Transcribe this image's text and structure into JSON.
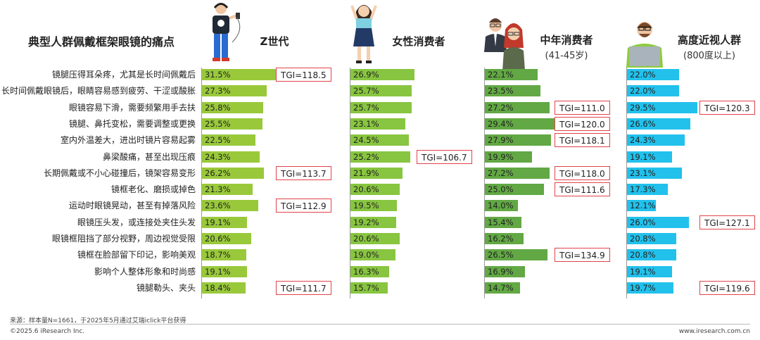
{
  "title": "典型人群佩戴框架眼镜的痛点",
  "colors": {
    "z": "#99c93b",
    "female": "#88c540",
    "middle": "#62a844",
    "myopia": "#22c1ec",
    "tgi_border": "#e0434a"
  },
  "chart_data": {
    "type": "bar",
    "orientation": "horizontal",
    "categories": [
      "镜腿压得耳朵疼，尤其是长时间佩戴后",
      "长时间佩戴眼镜后，眼睛容易感到疲劳、干涩或酸胀",
      "眼镜容易下滑，需要频繁用手去扶",
      "镜腿、鼻托变松，需要调整或更换",
      "室内外温差大，进出时镜片容易起雾",
      "鼻梁酸痛，甚至出现压痕",
      "长期佩戴或不小心碰撞后，镜架容易变形",
      "镜框老化、磨损或掉色",
      "运动时眼镜晃动，甚至有掉落风险",
      "眼镜压头发，或连接处夹住头发",
      "眼镜框阻挡了部分视野，周边视觉受限",
      "镜框在脸部留下印记，影响美观",
      "影响个人整体形象和时尚感",
      "镜腿勒头、夹头"
    ],
    "series": [
      {
        "name": "Z世代",
        "subtitle": "",
        "color_key": "z",
        "values": [
          31.5,
          27.3,
          25.8,
          25.5,
          22.5,
          24.3,
          26.2,
          21.3,
          23.6,
          19.1,
          20.6,
          18.7,
          19.1,
          18.4
        ],
        "labels": [
          "31.5%",
          "27.3%",
          "25.8%",
          "25.5%",
          "22.5%",
          "24.3%",
          "26.2%",
          "21.3%",
          "23.6%",
          "19.1%",
          "20.6%",
          "18.7%",
          "19.1%",
          "18.4%"
        ],
        "tgi": [
          {
            "row": 0,
            "text": "TGI=118.5"
          },
          {
            "row": 6,
            "text": "TGI=113.7"
          },
          {
            "row": 8,
            "text": "TGI=112.9"
          },
          {
            "row": 13,
            "text": "TGI=111.7"
          }
        ]
      },
      {
        "name": "女性消费者",
        "subtitle": "",
        "color_key": "female",
        "values": [
          26.9,
          25.7,
          25.7,
          23.1,
          24.5,
          25.2,
          21.9,
          20.6,
          19.5,
          19.2,
          20.6,
          19.0,
          16.3,
          15.7
        ],
        "labels": [
          "26.9%",
          "25.7%",
          "25.7%",
          "23.1%",
          "24.5%",
          "25.2%",
          "21.9%",
          "20.6%",
          "19.5%",
          "19.2%",
          "20.6%",
          "19.0%",
          "16.3%",
          "15.7%"
        ],
        "tgi": [
          {
            "row": 5,
            "text": "TGI=106.7"
          }
        ]
      },
      {
        "name": "中年消费者",
        "subtitle": "(41-45岁)",
        "color_key": "middle",
        "values": [
          22.1,
          23.5,
          27.2,
          29.4,
          27.9,
          19.9,
          27.2,
          25.0,
          14.0,
          15.4,
          16.2,
          26.5,
          16.9,
          14.7
        ],
        "labels": [
          "22.1%",
          "23.5%",
          "27.2%",
          "29.4%",
          "27.9%",
          "19.9%",
          "27.2%",
          "25.0%",
          "14.0%",
          "15.4%",
          "16.2%",
          "26.5%",
          "16.9%",
          "14.7%"
        ],
        "tgi": [
          {
            "row": 2,
            "text": "TGI=111.0"
          },
          {
            "row": 3,
            "text": "TGI=120.0"
          },
          {
            "row": 4,
            "text": "TGI=118.1"
          },
          {
            "row": 6,
            "text": "TGI=118.0"
          },
          {
            "row": 7,
            "text": "TGI=111.6"
          },
          {
            "row": 11,
            "text": "TGI=134.9"
          }
        ]
      },
      {
        "name": "高度近视人群",
        "subtitle": "(800度以上)",
        "color_key": "myopia",
        "values": [
          22.0,
          22.0,
          29.5,
          26.6,
          24.3,
          19.1,
          23.1,
          17.3,
          12.1,
          26.0,
          20.8,
          20.8,
          19.1,
          19.7
        ],
        "labels": [
          "22.0%",
          "22.0%",
          "29.5%",
          "26.6%",
          "24.3%",
          "19.1%",
          "23.1%",
          "17.3%",
          "12.1%",
          "26.0%",
          "20.8%",
          "20.8%",
          "19.1%",
          "19.7%"
        ],
        "tgi": [
          {
            "row": 2,
            "text": "TGI=120.3"
          },
          {
            "row": 9,
            "text": "TGI=127.1"
          },
          {
            "row": 13,
            "text": "TGI=119.6"
          }
        ]
      }
    ]
  },
  "footer": {
    "source": "来源：样本量N=1661，于2025年5月通过艾瑞iclick平台获得",
    "copyright": "©2025.6 iResearch Inc.",
    "website": "www.iresearch.com.cn"
  }
}
